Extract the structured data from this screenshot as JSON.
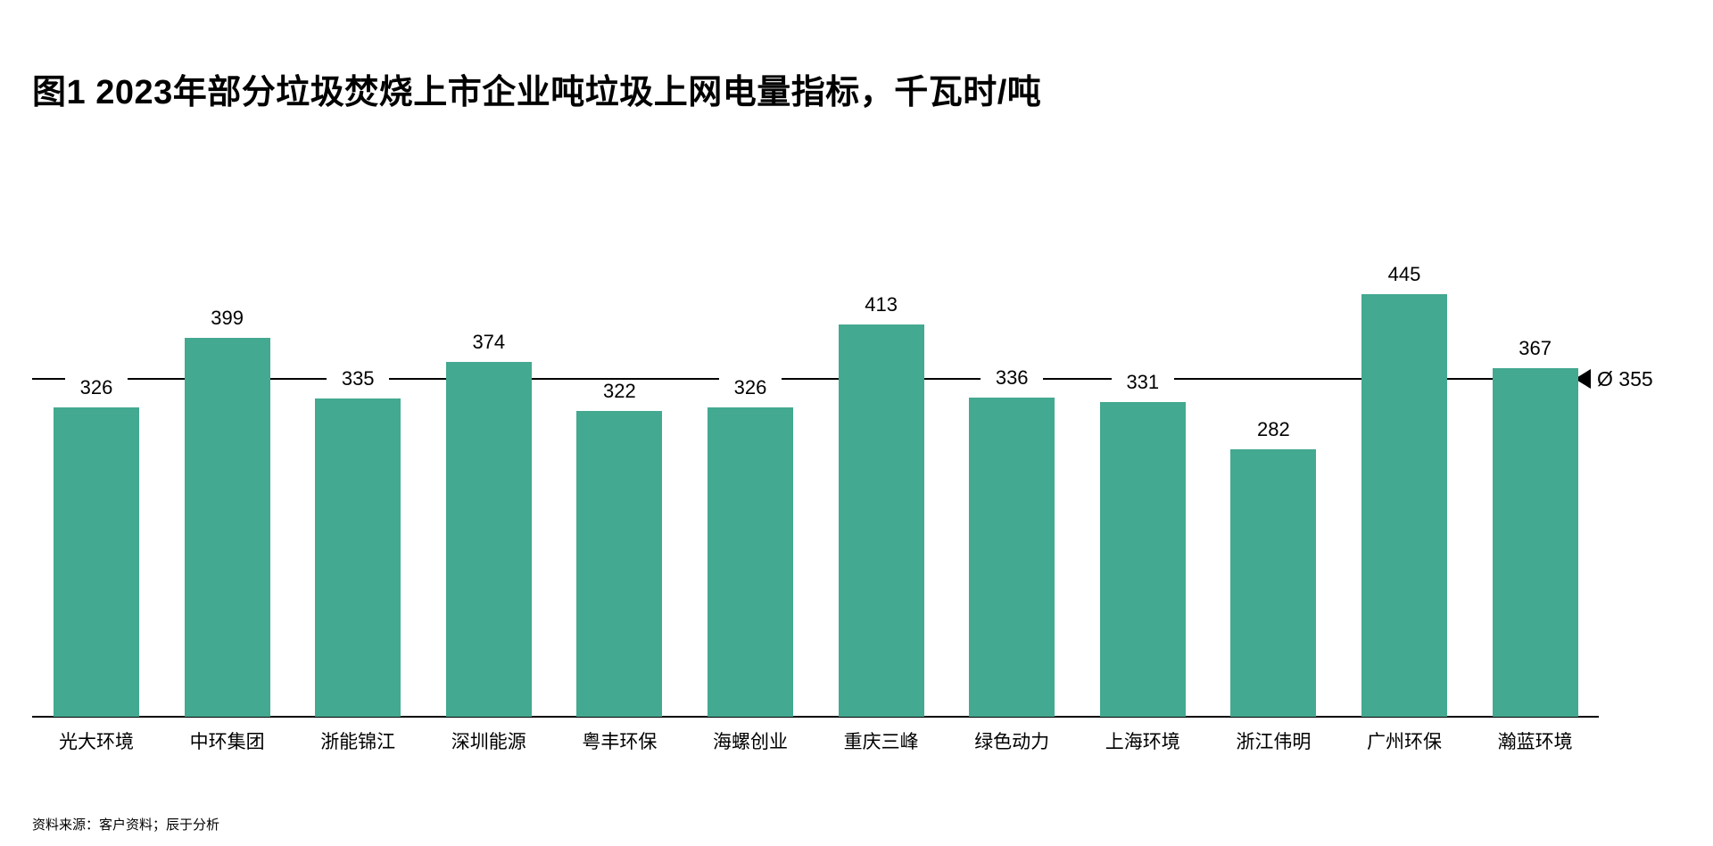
{
  "title": "图1 2023年部分垃圾焚烧上市企业吨垃圾上网电量指标，千瓦时/吨",
  "source": "资料来源：客户资料；辰于分析",
  "average": {
    "label": "Ø 355",
    "value": 355
  },
  "colors": {
    "bar": "#43a990",
    "axis": "#000000"
  },
  "chart_data": {
    "type": "bar",
    "title": "图1 2023年部分垃圾焚烧上市企业吨垃圾上网电量指标，千瓦时/吨",
    "xlabel": "",
    "ylabel": "千瓦时/吨",
    "categories": [
      "光大环境",
      "中环集团",
      "浙能锦江",
      "深圳能源",
      "粤丰环保",
      "海螺创业",
      "重庆三峰",
      "绿色动力",
      "上海环境",
      "浙江伟明",
      "广州环保",
      "瀚蓝环境"
    ],
    "values": [
      326,
      399,
      335,
      374,
      322,
      326,
      413,
      336,
      331,
      282,
      445,
      367
    ],
    "reference_line": {
      "label": "Ø 355",
      "value": 355
    },
    "ylim": [
      0,
      460
    ],
    "grid": false,
    "legend": null,
    "data_labels": true
  }
}
